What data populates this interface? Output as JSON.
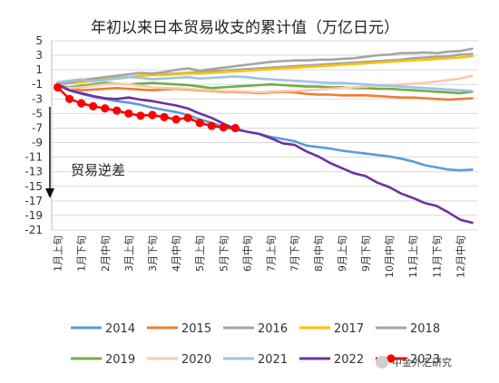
{
  "chart_data": {
    "type": "line",
    "title": "年初以来日本贸易收支的累计值（万亿日元）",
    "ylim": [
      -21,
      5
    ],
    "yticks": [
      5,
      3,
      1,
      -1,
      -3,
      -5,
      -7,
      -9,
      -11,
      -13,
      -15,
      -17,
      -19,
      -21
    ],
    "grid": true,
    "legend_position": "bottom",
    "x": [
      "1月上旬",
      "1月中旬",
      "1月下旬",
      "2月上旬",
      "2月中旬",
      "2月下旬",
      "3月上旬",
      "3月中旬",
      "3月下旬",
      "4月上旬",
      "4月中旬",
      "4月下旬",
      "5月上旬",
      "5月中旬",
      "5月下旬",
      "6月上旬",
      "6月中旬",
      "6月下旬",
      "7月上旬",
      "7月中旬",
      "7月下旬",
      "8月上旬",
      "8月中旬",
      "8月下旬",
      "9月上旬",
      "9月中旬",
      "9月下旬",
      "10月上旬",
      "10月中旬",
      "10月下旬",
      "11月上旬",
      "11月中旬",
      "11月下旬",
      "12月上旬",
      "12月中旬",
      "12月下旬"
    ],
    "xtick_labels": [
      "1月上旬",
      "1月下旬",
      "2月中旬",
      "3月上旬",
      "3月下旬",
      "4月中旬",
      "5月上旬",
      "5月下旬",
      "6月中旬",
      "7月上旬",
      "7月下旬",
      "8月中旬",
      "9月上旬",
      "9月下旬",
      "10月中旬",
      "11月上旬",
      "11月下旬",
      "12月中旬"
    ],
    "annotation": "贸易逆差",
    "series": [
      {
        "name": "2014",
        "color": "#5B9BD5",
        "marker": false,
        "values": [
          -1.2,
          -1.8,
          -2.3,
          -2.7,
          -3.0,
          -3.3,
          -3.5,
          -3.8,
          -4.2,
          -4.5,
          -4.8,
          -5.2,
          -5.8,
          -6.3,
          -6.8,
          -7.2,
          -7.5,
          -7.8,
          -8.2,
          -8.5,
          -8.8,
          -9.4,
          -9.6,
          -9.8,
          -10.1,
          -10.3,
          -10.5,
          -10.7,
          -10.9,
          -11.2,
          -11.6,
          -12.1,
          -12.4,
          -12.7,
          -12.8,
          -12.7
        ]
      },
      {
        "name": "2015",
        "color": "#ED7D31",
        "marker": false,
        "values": [
          -1.1,
          -1.5,
          -1.8,
          -1.7,
          -1.6,
          -1.5,
          -1.6,
          -1.7,
          -1.8,
          -1.7,
          -1.6,
          -1.7,
          -1.8,
          -1.9,
          -2.0,
          -2.0,
          -2.1,
          -2.2,
          -2.1,
          -2.0,
          -2.1,
          -2.3,
          -2.4,
          -2.4,
          -2.5,
          -2.5,
          -2.5,
          -2.6,
          -2.7,
          -2.8,
          -2.8,
          -2.9,
          -3.0,
          -3.1,
          -3.0,
          -2.9
        ]
      },
      {
        "name": "2016",
        "color": "#A5A5A5",
        "marker": false,
        "values": [
          -0.9,
          -0.8,
          -0.7,
          -0.5,
          -0.3,
          -0.2,
          0.0,
          0.2,
          0.3,
          0.4,
          0.5,
          0.6,
          0.7,
          0.8,
          0.9,
          1.0,
          1.1,
          1.2,
          1.3,
          1.4,
          1.5,
          1.6,
          1.7,
          1.8,
          1.9,
          2.0,
          2.1,
          2.2,
          2.3,
          2.4,
          2.6,
          2.7,
          2.8,
          2.9,
          3.1,
          3.2
        ]
      },
      {
        "name": "2017",
        "color": "#FFC000",
        "marker": false,
        "values": [
          -0.8,
          -0.6,
          -0.7,
          -0.5,
          -0.3,
          -0.1,
          0.0,
          0.2,
          0.3,
          0.3,
          0.4,
          0.5,
          0.5,
          0.6,
          0.7,
          0.8,
          0.9,
          1.0,
          1.1,
          1.2,
          1.3,
          1.4,
          1.5,
          1.6,
          1.7,
          1.8,
          1.9,
          2.0,
          2.1,
          2.2,
          2.3,
          2.4,
          2.5,
          2.6,
          2.7,
          2.9
        ]
      },
      {
        "name": "2018",
        "color": "#A5A5A5",
        "marker": false,
        "values": [
          -0.9,
          -0.6,
          -0.4,
          -0.2,
          0.0,
          0.2,
          0.4,
          0.6,
          0.5,
          0.7,
          1.0,
          1.2,
          0.9,
          1.1,
          1.3,
          1.5,
          1.7,
          1.9,
          2.1,
          2.2,
          2.3,
          2.3,
          2.4,
          2.4,
          2.5,
          2.6,
          2.8,
          3.0,
          3.1,
          3.3,
          3.3,
          3.4,
          3.3,
          3.5,
          3.6,
          3.9
        ]
      },
      {
        "name": "2019",
        "color": "#70AD47",
        "marker": false,
        "values": [
          -1.2,
          -1.4,
          -1.2,
          -1.0,
          -0.8,
          -0.9,
          -1.0,
          -0.9,
          -0.8,
          -0.9,
          -1.0,
          -1.1,
          -1.3,
          -1.5,
          -1.4,
          -1.3,
          -1.2,
          -1.1,
          -1.0,
          -1.1,
          -1.2,
          -1.3,
          -1.3,
          -1.4,
          -1.4,
          -1.5,
          -1.5,
          -1.6,
          -1.6,
          -1.7,
          -1.8,
          -1.9,
          -2.0,
          -2.1,
          -2.2,
          -2.0
        ]
      },
      {
        "name": "2020",
        "color": "#F8CBAD",
        "marker": false,
        "values": [
          -1.3,
          -1.5,
          -1.4,
          -1.2,
          -1.0,
          -0.9,
          -1.0,
          -1.2,
          -1.4,
          -1.5,
          -1.5,
          -1.6,
          -1.7,
          -1.8,
          -1.9,
          -1.9,
          -2.0,
          -2.1,
          -2.0,
          -1.9,
          -1.9,
          -1.8,
          -1.7,
          -1.6,
          -1.5,
          -1.4,
          -1.3,
          -1.2,
          -1.1,
          -1.0,
          -0.9,
          -0.8,
          -0.6,
          -0.4,
          -0.2,
          0.2
        ]
      },
      {
        "name": "2021",
        "color": "#9DC3E6",
        "marker": false,
        "values": [
          -0.7,
          -0.5,
          -0.3,
          -0.6,
          -0.4,
          -0.2,
          0.0,
          -0.1,
          -0.3,
          -0.2,
          -0.1,
          0.0,
          -0.2,
          -0.1,
          0.0,
          0.1,
          0.0,
          -0.2,
          -0.3,
          -0.4,
          -0.5,
          -0.6,
          -0.7,
          -0.8,
          -0.8,
          -0.9,
          -1.0,
          -1.1,
          -1.2,
          -1.3,
          -1.4,
          -1.5,
          -1.6,
          -1.7,
          -1.8,
          -1.9
        ]
      },
      {
        "name": "2022",
        "color": "#7030A0",
        "marker": false,
        "values": [
          -1.0,
          -1.8,
          -2.2,
          -2.6,
          -2.9,
          -3.0,
          -2.8,
          -3.1,
          -3.3,
          -3.6,
          -3.9,
          -4.3,
          -5.0,
          -5.6,
          -6.4,
          -7.1,
          -7.5,
          -7.8,
          -8.4,
          -9.1,
          -9.3,
          -10.2,
          -10.9,
          -11.8,
          -12.5,
          -13.2,
          -13.6,
          -14.5,
          -15.1,
          -16.0,
          -16.6,
          -17.3,
          -17.7,
          -18.6,
          -19.6,
          -20.0
        ]
      },
      {
        "name": "2023",
        "color": "#FF0000",
        "marker": true,
        "values": [
          -1.4,
          -3.0,
          -3.6,
          -4.0,
          -4.3,
          -4.6,
          -5.0,
          -5.3,
          -5.2,
          -5.5,
          -5.8,
          -5.6,
          -6.3,
          -6.7,
          -6.9,
          -7.0,
          null,
          null,
          null,
          null,
          null,
          null,
          null,
          null,
          null,
          null,
          null,
          null,
          null,
          null,
          null,
          null,
          null,
          null,
          null,
          null
        ]
      }
    ]
  },
  "watermark": "中金外汇研究"
}
